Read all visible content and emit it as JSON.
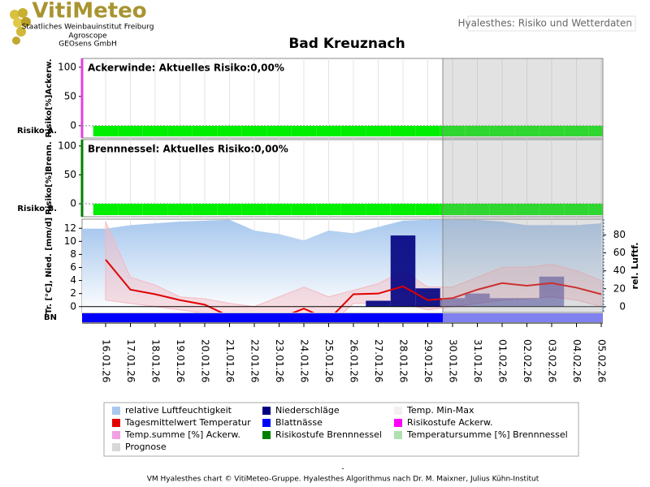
{
  "header": {
    "logo": "VitiMeteo",
    "org1": "Staatliches Weinbauinstitut Freiburg",
    "org2": "Agroscope",
    "org3": "GEOsens GmbH",
    "app": "Hyalesthes: Risiko und Wetterdaten"
  },
  "title": "Bad Kreuznach",
  "chart_data": [
    {
      "type": "risk",
      "title": "Ackerwinde: Aktuelles Risiko:0,00%",
      "ylabel": "Risiko[%]Ackerw.",
      "row_label": "Risiko A.",
      "axis_color": "#e040e0",
      "color": "#00ee00",
      "ylim": [
        -21,
        115
      ],
      "yticks": [
        0,
        50,
        100
      ],
      "values": [
        0,
        0,
        0,
        0,
        0,
        0,
        0,
        0,
        0,
        0,
        0,
        0,
        0,
        0,
        0,
        0,
        0,
        0,
        0,
        0,
        0
      ]
    },
    {
      "type": "risk",
      "title": "Brennnessel: Aktuelles Risiko:0,00%",
      "ylabel": "Risiko[%]Brenn.",
      "row_label": "Risiko B.",
      "axis_color": "#008000",
      "color": "#00ee00",
      "ylim": [
        -22.5,
        111
      ],
      "yticks": [
        0,
        50,
        100
      ],
      "values": [
        0,
        0,
        0,
        0,
        0,
        0,
        0,
        0,
        0,
        0,
        0,
        0,
        0,
        0,
        0,
        0,
        0,
        0,
        0,
        0,
        0
      ]
    },
    {
      "type": "weather",
      "ylabel": "Tr. [°C], Nied. [mm/d]",
      "y2label": "rel. Luftf.",
      "row_label": "BN",
      "x": [
        "16.01.26",
        "17.01.26",
        "18.01.26",
        "19.01.26",
        "20.01.26",
        "21.01.26",
        "22.01.26",
        "23.01.26",
        "24.01.26",
        "25.01.26",
        "26.01.26",
        "27.01.26",
        "28.01.26",
        "29.01.26",
        "30.01.26",
        "31.01.26",
        "01.02.26",
        "02.02.26",
        "03.02.26",
        "04.02.26",
        "05.02.26"
      ],
      "ylim": [
        -0.9,
        13.4
      ],
      "yticks": [
        0,
        2,
        4,
        6,
        8,
        10,
        12
      ],
      "y2lim": [
        -6.5,
        97.7
      ],
      "y2ticks": [
        0,
        20,
        40,
        60,
        80
      ],
      "series": [
        {
          "kind": "area",
          "axis": "y2",
          "color": "#a8c8ee",
          "values": [
            87,
            91,
            93,
            95,
            96,
            97,
            85,
            81,
            74,
            85,
            82,
            89,
            96,
            97,
            97,
            97,
            95,
            91,
            91,
            91,
            93
          ]
        },
        {
          "kind": "band",
          "color": "#f4b8c0",
          "low": [
            1.0,
            0.5,
            0,
            -0.5,
            -1,
            -3,
            -4,
            -4,
            -2,
            -3,
            0.5,
            0.5,
            0.5,
            -0.5,
            0,
            0.5,
            1,
            1.2,
            1.5,
            1,
            0
          ],
          "values": [
            13,
            4.5,
            3.3,
            1.5,
            1.2,
            0.5,
            0,
            1.5,
            3.0,
            1.5,
            2.5,
            3.5,
            5.5,
            3,
            3,
            4.5,
            6,
            6,
            6.5,
            5.5,
            4
          ]
        },
        {
          "kind": "bar",
          "color": "#000080",
          "values": [
            0,
            0,
            0,
            0,
            0,
            0,
            0,
            0,
            0,
            0,
            0,
            0.9,
            10.9,
            2.8,
            1.3,
            2.0,
            1.3,
            1.3,
            4.6,
            0,
            0
          ]
        },
        {
          "kind": "line",
          "color": "#e00000",
          "values": [
            7.2,
            2.6,
            1.9,
            1.0,
            0.3,
            -1.5,
            -2.0,
            -1.8,
            -0.3,
            -2.0,
            1.9,
            2.0,
            3.1,
            1.0,
            1.3,
            2.6,
            3.6,
            3.2,
            3.6,
            2.9,
            1.9
          ]
        }
      ]
    }
  ],
  "legend": [
    {
      "name": "relative Luftfeuchtigkeit",
      "color": "#a8c8ee"
    },
    {
      "name": "Niederschläge",
      "color": "#000080"
    },
    {
      "name": "Temp. Min-Max",
      "color": "#f4f0f0"
    },
    {
      "name": "Tagesmittelwert Temperatur",
      "color": "#e00000"
    },
    {
      "name": "Blattnässe",
      "color": "#0000ff"
    },
    {
      "name": "Risikostufe Ackerw.",
      "color": "#ff00ff"
    },
    {
      "name": "Temp.summe [%] Ackerw.",
      "color": "#f0a0e0"
    },
    {
      "name": "Risikostufe Brennnessel",
      "color": "#008000"
    },
    {
      "name": "Temperatursumme [%] Brennnessel",
      "color": "#b0e0b0"
    },
    {
      "name": "Prognose",
      "color": "#d8d8d8"
    }
  ],
  "footer_dash": "-",
  "footer": "VM Hyalesthes chart © VitiMeteo-Gruppe. Hyalesthes Algorithmus nach Dr. M. Maixner, Julius Kühn-Institut"
}
